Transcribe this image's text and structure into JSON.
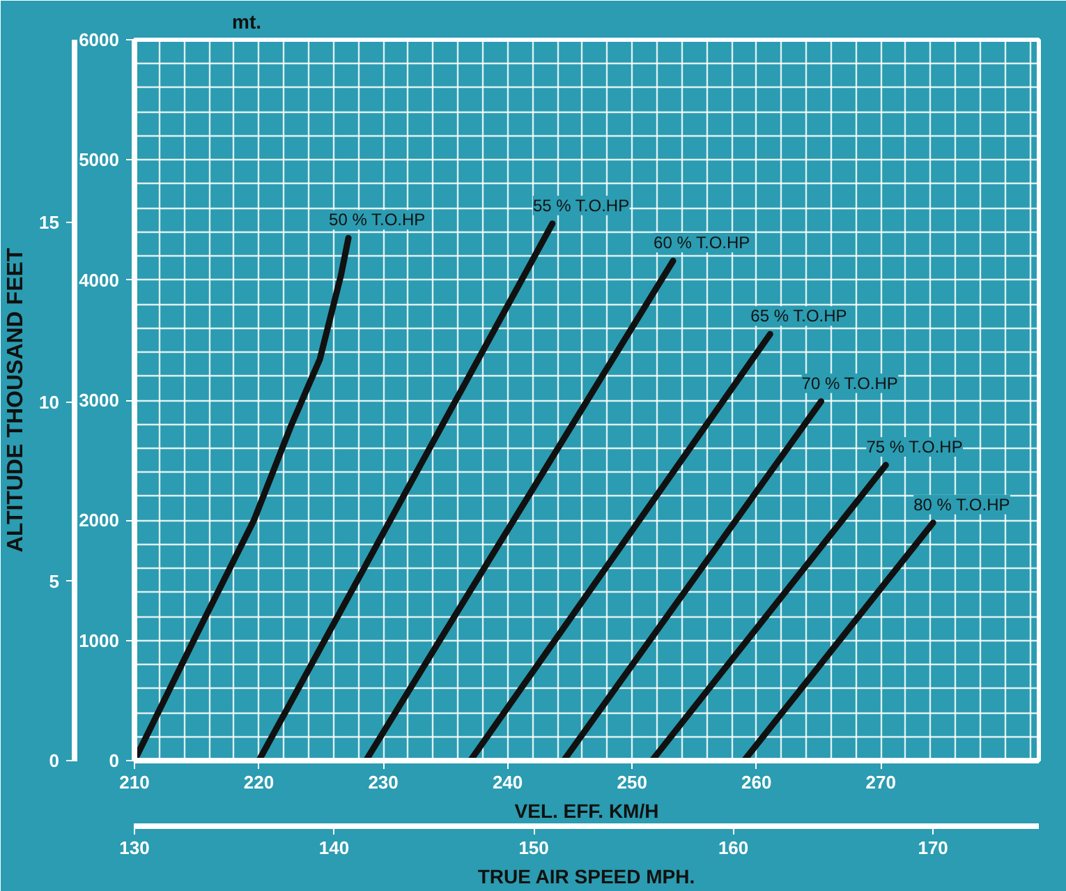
{
  "chart_data": {
    "type": "line",
    "xlabel": "VEL. EFF. KM/H",
    "x2label": "TRUE AIR SPEED MPH.",
    "ylabel": "mt.",
    "y2label": "ALTITUDE THOUSAND FEET",
    "xlim": [
      210,
      282.7
    ],
    "xticks": [
      210,
      220,
      230,
      240,
      250,
      260,
      270
    ],
    "x2lim": [
      130,
      175.3
    ],
    "x2ticks": [
      130,
      140,
      150,
      160,
      170
    ],
    "ylim": [
      0,
      6000
    ],
    "yticks": [
      0,
      1000,
      2000,
      3000,
      4000,
      5000,
      6000
    ],
    "y2lim": [
      0,
      20.1
    ],
    "y2ticks": [
      0,
      5,
      10,
      15
    ],
    "grid": true,
    "marker": "none",
    "line_style": "solid",
    "series": [
      {
        "name": "50 % T.O.HP",
        "color": "#111111",
        "x": [
          210,
          214.9,
          219.6,
          222.6,
          224.9,
          226.6,
          227.2
        ],
        "values": [
          0,
          1030,
          2000,
          2790,
          3340,
          4040,
          4350
        ]
      },
      {
        "name": "55 % T.O.HP",
        "color": "#111111",
        "x": [
          220,
          243.6
        ],
        "values": [
          0,
          4470
        ]
      },
      {
        "name": "60 % T.O.HP",
        "color": "#111111",
        "x": [
          228.6,
          253.3
        ],
        "values": [
          0,
          4160
        ]
      },
      {
        "name": "65 % T.O.HP",
        "color": "#111111",
        "x": [
          237,
          261.1
        ],
        "values": [
          0,
          3550
        ]
      },
      {
        "name": "70 % T.O.HP",
        "color": "#111111",
        "x": [
          244.5,
          265.2
        ],
        "values": [
          0,
          2990
        ]
      },
      {
        "name": "75 % T.O.HP",
        "color": "#111111",
        "x": [
          251.6,
          270.4
        ],
        "values": [
          0,
          2460
        ]
      },
      {
        "name": "80 % T.O.HP",
        "color": "#111111",
        "x": [
          259,
          274.2
        ],
        "values": [
          0,
          1980
        ]
      }
    ]
  }
}
